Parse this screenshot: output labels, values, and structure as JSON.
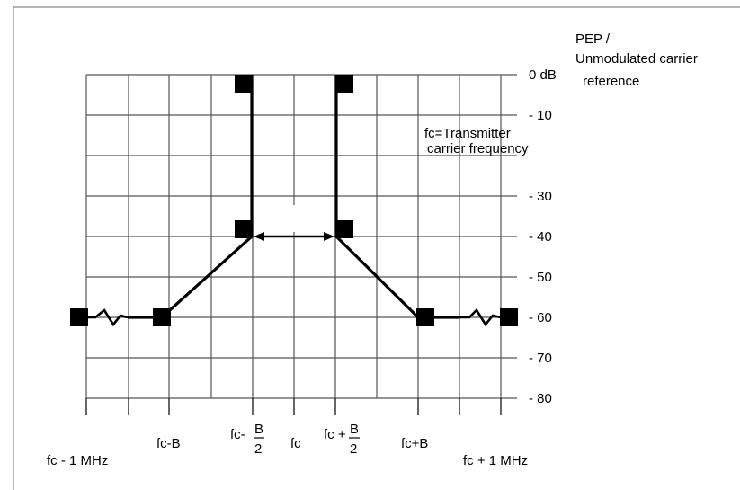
{
  "chart_data": {
    "type": "line",
    "title": "",
    "ylabel": "PEP / Unmodulated carrier reference",
    "ylabel_lines": [
      "PEP /",
      "Unmodulated carrier",
      "reference"
    ],
    "ylim": [
      0,
      -80
    ],
    "y_ticks": [
      "0 dB",
      "- 10",
      "- 30",
      "- 40",
      "- 50",
      "- 60",
      "- 70",
      "- 80"
    ],
    "y_tick_values": [
      0,
      -10,
      -30,
      -40,
      -50,
      -60,
      -70,
      -80
    ],
    "x_tick_labels": [
      "fc - 1 MHz",
      "fc-B",
      "fc- B/2",
      "fc",
      "fc +B/2",
      "fc+B",
      "fc + 1 MHz"
    ],
    "annotation": [
      "fc=Transmitter",
      "carrier frequency"
    ],
    "grid": true,
    "mask_points_x": [
      "fc - 1 MHz",
      "fc-B",
      "fc- B/2",
      "fc- B/2",
      "fc +B/2",
      "fc +B/2",
      "fc+B",
      "fc + 1 MHz"
    ],
    "mask_points_y": [
      -60,
      -60,
      -40,
      0,
      0,
      -40,
      -60,
      -60
    ],
    "arrow": {
      "from": "fc- B/2",
      "to": "fc +B/2",
      "level": -40
    }
  },
  "colors": {
    "ink": "#000000",
    "grid": "#555555",
    "frame": "#888888",
    "background": "#ffffff"
  }
}
